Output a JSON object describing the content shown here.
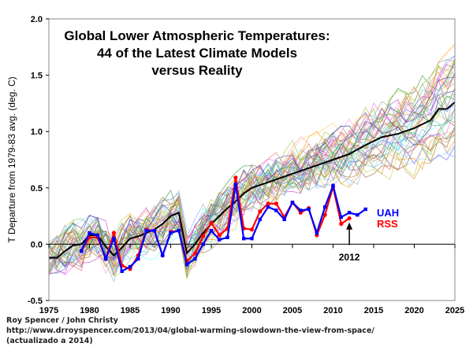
{
  "chart_data": {
    "type": "line",
    "title_lines": [
      "Global Lower Atmospheric Temperatures:",
      "44 of the Latest Climate Models",
      "versus Reality"
    ],
    "xlabel": "",
    "ylabel": "T Departure from 1979-83 avg. (deg. C)",
    "xlim": [
      1975,
      2025
    ],
    "ylim": [
      -0.5,
      2.0
    ],
    "xticks": [
      "1975",
      "1980",
      "1985",
      "1990",
      "1995",
      "2000",
      "2005",
      "2010",
      "2015",
      "2020",
      "2025"
    ],
    "yticks": [
      "-0.5",
      "0.0",
      "0.5",
      "1.0",
      "1.5",
      "2.0"
    ],
    "grid": false,
    "model_count": 44,
    "model_mean": {
      "color": "#000000",
      "x": [
        1975,
        1976,
        1977,
        1978,
        1979,
        1980,
        1981,
        1982,
        1983,
        1984,
        1985,
        1986,
        1987,
        1988,
        1989,
        1990,
        1991,
        1992,
        1993,
        1994,
        1995,
        1996,
        1997,
        1998,
        1999,
        2000,
        2002,
        2004,
        2006,
        2008,
        2010,
        2012,
        2014,
        2016,
        2018,
        2020,
        2022,
        2023,
        2024,
        2025
      ],
      "y": [
        -0.12,
        -0.12,
        -0.06,
        -0.01,
        0.0,
        0.08,
        0.08,
        -0.02,
        -0.1,
        -0.03,
        0.05,
        0.07,
        0.1,
        0.13,
        0.18,
        0.25,
        0.28,
        -0.08,
        0.0,
        0.1,
        0.18,
        0.25,
        0.32,
        0.38,
        0.45,
        0.5,
        0.55,
        0.6,
        0.65,
        0.7,
        0.75,
        0.8,
        0.88,
        0.95,
        0.98,
        1.03,
        1.1,
        1.2,
        1.2,
        1.26
      ]
    },
    "series": [
      {
        "name": "UAH",
        "color": "#0000ff",
        "x": [
          1979,
          1980,
          1981,
          1982,
          1983,
          1984,
          1985,
          1986,
          1987,
          1988,
          1989,
          1990,
          1991,
          1992,
          1993,
          1994,
          1995,
          1996,
          1997,
          1998,
          1999,
          2000,
          2001,
          2002,
          2003,
          2004,
          2005,
          2006,
          2007,
          2008,
          2009,
          2010,
          2011,
          2012,
          2013,
          2014
        ],
        "y": [
          -0.06,
          0.1,
          0.08,
          -0.13,
          0.05,
          -0.24,
          -0.2,
          -0.13,
          0.12,
          0.12,
          -0.1,
          0.1,
          0.12,
          -0.18,
          -0.13,
          0.0,
          0.12,
          0.04,
          0.06,
          0.53,
          0.05,
          0.05,
          0.22,
          0.33,
          0.3,
          0.22,
          0.37,
          0.3,
          0.31,
          0.1,
          0.33,
          0.52,
          0.24,
          0.28,
          0.26,
          0.31
        ]
      },
      {
        "name": "RSS",
        "color": "#ff0000",
        "x": [
          1979,
          1980,
          1981,
          1982,
          1983,
          1984,
          1985,
          1986,
          1987,
          1988,
          1989,
          1990,
          1991,
          1992,
          1993,
          1994,
          1995,
          1996,
          1997,
          1998,
          1999,
          2000,
          2001,
          2002,
          2003,
          2004,
          2005,
          2006,
          2007,
          2008,
          2009,
          2010,
          2011,
          2012
        ],
        "y": [
          -0.06,
          0.06,
          0.06,
          -0.13,
          0.1,
          -0.19,
          -0.22,
          -0.1,
          0.13,
          0.12,
          -0.1,
          0.11,
          0.12,
          -0.15,
          -0.08,
          0.07,
          0.19,
          0.08,
          0.14,
          0.59,
          0.14,
          0.13,
          0.29,
          0.36,
          0.36,
          0.24,
          0.37,
          0.28,
          0.32,
          0.08,
          0.26,
          0.51,
          0.18,
          0.23
        ]
      }
    ],
    "annotations": [
      {
        "text": "2012",
        "x": 2012
      }
    ]
  },
  "footer": {
    "authors": "Roy Spencer / John Christy",
    "url": "http://www.drroyspencer.com/2013/04/global-warming-slowdown-the-view-from-space/",
    "note": "(actualizado a 2014)"
  }
}
